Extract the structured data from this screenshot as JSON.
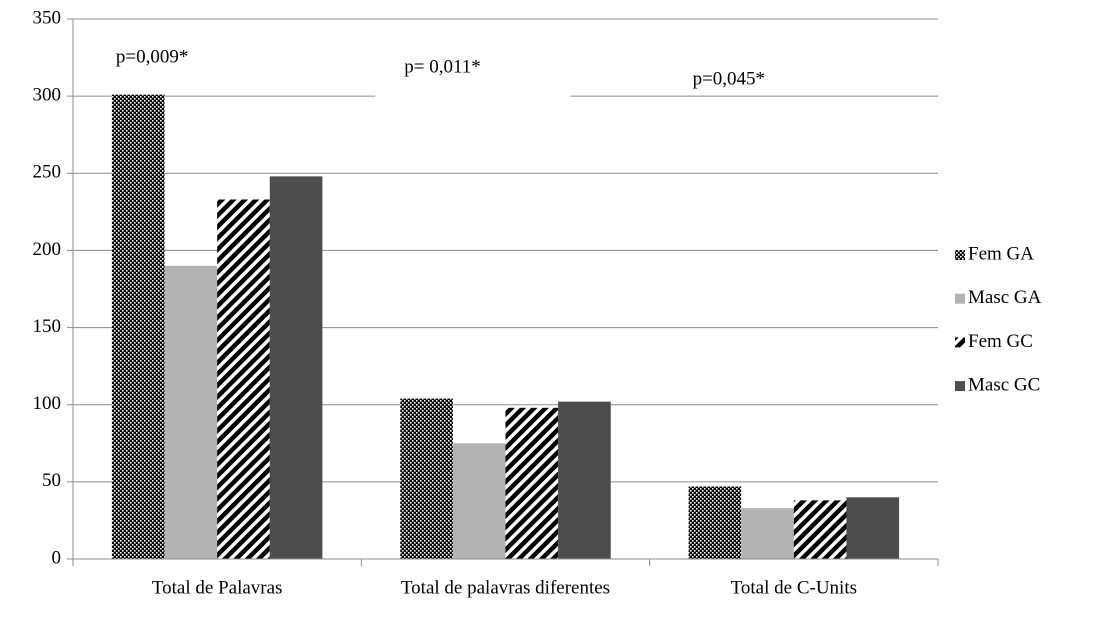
{
  "chart_data": {
    "type": "bar",
    "categories": [
      "Total de Palavras",
      "Total de palavras diferentes",
      "Total de C-Units"
    ],
    "series": [
      {
        "name": "Fem GA",
        "color": "#000000",
        "pattern": "dots",
        "values": [
          301,
          104,
          47
        ]
      },
      {
        "name": "Masc GA",
        "color": "#b3b3b3",
        "pattern": "solid",
        "values": [
          190,
          75,
          33
        ]
      },
      {
        "name": "Fem GC",
        "color": "#000000",
        "pattern": "stripes",
        "values": [
          233,
          98,
          38
        ]
      },
      {
        "name": "Masc GC",
        "color": "#4d4d4d",
        "pattern": "solid",
        "values": [
          248,
          102,
          40
        ]
      }
    ],
    "annotations": [
      "p=0,009*",
      "p= 0,011*",
      "p=0,045*"
    ],
    "ylim": [
      0,
      350
    ],
    "yticks": [
      0,
      50,
      100,
      150,
      200,
      250,
      300,
      350
    ],
    "grid": true,
    "legend": "right"
  }
}
